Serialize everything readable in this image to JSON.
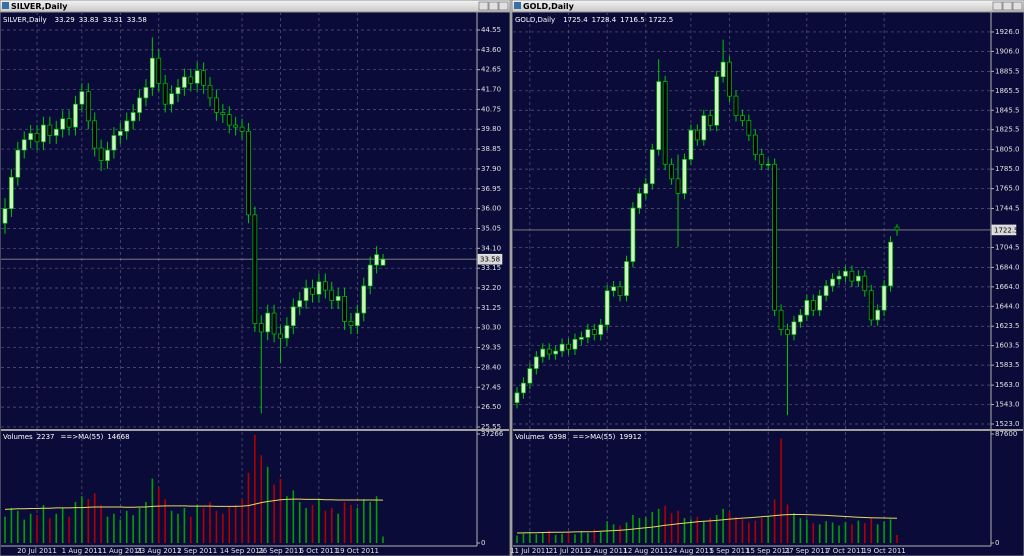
{
  "chart_data": [
    {
      "type": "candlestick",
      "title": "SILVER,Daily",
      "categories": [
        null,
        null,
        null,
        null,
        null,
        "20 Jul 2011",
        null,
        null,
        null,
        null,
        null,
        null,
        "1 Aug 2011",
        null,
        null,
        null,
        null,
        null,
        "11 Aug 2011",
        null,
        null,
        null,
        null,
        null,
        "23 Aug 2011",
        null,
        null,
        null,
        null,
        null,
        "2 Sep 2011",
        null,
        null,
        null,
        null,
        null,
        null,
        "14 Sep 2011",
        null,
        null,
        null,
        null,
        null,
        "26 Sep 2011",
        null,
        null,
        null,
        null,
        null,
        "6 Oct 2011",
        null,
        null,
        null,
        null,
        null,
        "19 Oct 2011",
        null,
        null,
        null,
        null
      ],
      "open": [
        35.3,
        36.0,
        37.5,
        38.8,
        39.3,
        39.6,
        39.2,
        40.0,
        39.5,
        39.8,
        40.3,
        39.9,
        41.0,
        41.6,
        40.2,
        38.9,
        38.3,
        38.8,
        39.5,
        39.7,
        40.2,
        40.6,
        41.3,
        41.8,
        43.2,
        42.0,
        41.0,
        41.5,
        41.8,
        42.3,
        42.0,
        42.6,
        41.9,
        41.3,
        40.6,
        40.5,
        40.0,
        39.9,
        39.7,
        35.7,
        30.5,
        30.1,
        31.0,
        30.0,
        29.8,
        30.4,
        31.3,
        31.6,
        32.2,
        31.9,
        32.5,
        32.1,
        31.6,
        31.8,
        30.6,
        30.4,
        31.0,
        32.3,
        33.3,
        33.29
      ],
      "high": [
        36.5,
        37.9,
        39.2,
        39.7,
        40.0,
        40.0,
        40.4,
        40.4,
        40.2,
        40.7,
        40.7,
        41.4,
        42.0,
        42.0,
        40.6,
        39.3,
        39.2,
        39.9,
        40.1,
        40.6,
        41.0,
        41.7,
        42.2,
        44.2,
        43.6,
        42.4,
        41.9,
        42.2,
        42.7,
        42.7,
        43.0,
        43.0,
        42.3,
        41.7,
        41.0,
        40.9,
        40.4,
        40.3,
        40.1,
        36.1,
        30.9,
        31.4,
        31.4,
        30.4,
        30.8,
        31.7,
        32.0,
        32.6,
        32.6,
        32.9,
        32.9,
        32.5,
        32.2,
        32.2,
        31.0,
        31.4,
        32.7,
        33.7,
        34.2,
        33.83
      ],
      "low": [
        34.8,
        35.6,
        37.1,
        38.4,
        38.9,
        38.8,
        38.8,
        39.1,
        39.1,
        39.4,
        39.5,
        39.5,
        40.6,
        39.8,
        38.5,
        37.8,
        37.9,
        38.4,
        39.1,
        39.3,
        39.8,
        40.2,
        40.9,
        41.4,
        41.6,
        40.6,
        40.6,
        41.1,
        41.4,
        41.6,
        41.6,
        41.5,
        40.9,
        40.2,
        40.1,
        39.6,
        39.5,
        39.3,
        35.3,
        30.1,
        26.2,
        29.7,
        29.6,
        28.6,
        29.4,
        30.0,
        30.9,
        31.2,
        31.5,
        31.5,
        31.7,
        31.2,
        31.2,
        30.2,
        30.0,
        30.0,
        30.6,
        31.9,
        32.9,
        33.31
      ],
      "close": [
        36.0,
        37.5,
        38.8,
        39.3,
        39.6,
        39.2,
        40.0,
        39.5,
        39.8,
        40.3,
        39.9,
        41.0,
        41.6,
        40.2,
        38.9,
        38.3,
        38.8,
        39.5,
        39.7,
        40.2,
        40.6,
        41.3,
        41.8,
        43.2,
        42.0,
        41.0,
        41.5,
        41.8,
        42.3,
        42.0,
        42.6,
        41.9,
        41.3,
        40.6,
        40.5,
        40.0,
        39.9,
        39.7,
        35.7,
        30.5,
        30.1,
        31.0,
        30.0,
        29.8,
        30.4,
        31.3,
        31.6,
        32.2,
        31.9,
        32.5,
        32.1,
        31.6,
        31.8,
        30.6,
        30.4,
        31.0,
        32.3,
        33.3,
        33.8,
        33.58
      ],
      "ylim": [
        25.5,
        45.22
      ],
      "yticks": [
        44.55,
        {
          "value": 43.6,
          "label": "43.60"
        },
        42.65,
        {
          "value": 41.7,
          "label": "41.70"
        },
        40.75,
        {
          "value": 39.8,
          "label": "39.80"
        },
        38.85,
        {
          "value": 37.9,
          "label": "37.90"
        },
        36.95,
        {
          "value": 36,
          "label": "36.00"
        },
        35.05,
        {
          "value": 34.1,
          "label": "34.10"
        },
        33.15,
        {
          "value": 32.2,
          "label": "32.20"
        },
        31.25,
        {
          "value": 30.3,
          "label": "30.30"
        },
        29.35,
        {
          "value": 28.4,
          "label": "28.40"
        },
        27.45,
        {
          "value": 26.5,
          "label": "26.50"
        },
        25.55
      ],
      "grid": true,
      "background": "#0b0b3a",
      "grid_color": "#5a5a7a",
      "up_color": "#d2f2c4",
      "down_color": "#000000",
      "wick_color": "#00c800",
      "price_line_color": "#8a8a8a",
      "volume": {
        "label": "Volumes",
        "ma_label": "==>MA(55)",
        "values": [
          9000,
          12000,
          11000,
          8000,
          10000,
          9500,
          13000,
          8500,
          10000,
          12000,
          9000,
          14000,
          16000,
          15000,
          17000,
          13000,
          9000,
          10000,
          8000,
          11000,
          9500,
          12000,
          14000,
          22000,
          19000,
          15000,
          11000,
          10000,
          12000,
          9000,
          13000,
          12000,
          14000,
          11000,
          10000,
          12500,
          13000,
          15000,
          24000,
          37000,
          30000,
          26000,
          20000,
          22000,
          16000,
          18000,
          14000,
          12000,
          13000,
          15000,
          11000,
          12000,
          10000,
          14000,
          13000,
          12000,
          15000,
          14000,
          16000,
          2237
        ],
        "ma_values": [
          11500,
          11600,
          11700,
          11700,
          11800,
          11800,
          11900,
          11900,
          12000,
          12000,
          12000,
          12100,
          12100,
          12200,
          12300,
          12300,
          12300,
          12300,
          12300,
          12200,
          12200,
          12300,
          12300,
          12500,
          12600,
          12700,
          12700,
          12700,
          12700,
          12600,
          12600,
          12600,
          12600,
          12500,
          12500,
          12500,
          12500,
          12600,
          12800,
          13300,
          13800,
          14200,
          14500,
          14800,
          14900,
          15000,
          15000,
          14900,
          14900,
          14900,
          14800,
          14800,
          14700,
          14700,
          14700,
          14700,
          14700,
          14700,
          14700,
          14668
        ],
        "ylim": [
          0,
          37266
        ],
        "yticks": [
          0,
          37266
        ],
        "up_color": "#00a000",
        "down_color": "#b00000",
        "ma_color": "#e8d860"
      }
    },
    {
      "type": "candlestick",
      "title": "GOLD,Daily",
      "categories": [
        null,
        null,
        "11 Jul 2011",
        null,
        null,
        null,
        null,
        null,
        "21 Jul 2011",
        null,
        null,
        null,
        null,
        null,
        "2 Aug 2011",
        null,
        null,
        null,
        null,
        null,
        "12 Aug 2011",
        null,
        null,
        null,
        null,
        null,
        null,
        "24 Aug 2011",
        null,
        null,
        null,
        null,
        null,
        "5 Sep 2011",
        null,
        null,
        null,
        null,
        null,
        "15 Sep 2011",
        null,
        null,
        null,
        null,
        null,
        "27 Sep 2011",
        null,
        null,
        null,
        null,
        null,
        "7 Oct 2011",
        null,
        null,
        null,
        null,
        null,
        "19 Oct 2011",
        null,
        null
      ],
      "open": [
        1545,
        1555,
        1565,
        1580,
        1592,
        1600,
        1595,
        1598,
        1605,
        1600,
        1610,
        1612,
        1620,
        1615,
        1625,
        1660,
        1664,
        1655,
        1690,
        1745,
        1760,
        1770,
        1805,
        1875,
        1790,
        1775,
        1760,
        1795,
        1825,
        1815,
        1840,
        1830,
        1880,
        1895,
        1860,
        1840,
        1835,
        1820,
        1800,
        1790,
        1790,
        1640,
        1620,
        1615,
        1628,
        1635,
        1650,
        1640,
        1655,
        1665,
        1672,
        1675,
        1680,
        1670,
        1675,
        1660,
        1630,
        1640,
        1665,
        1725.4
      ],
      "high": [
        1561,
        1571,
        1586,
        1598,
        1606,
        1606,
        1604,
        1611,
        1611,
        1616,
        1618,
        1626,
        1626,
        1631,
        1666,
        1670,
        1670,
        1696,
        1751,
        1766,
        1776,
        1811,
        1898,
        1881,
        1796,
        1800,
        1801,
        1831,
        1831,
        1846,
        1846,
        1886,
        1918,
        1901,
        1866,
        1846,
        1841,
        1826,
        1806,
        1796,
        1796,
        1646,
        1626,
        1634,
        1641,
        1656,
        1656,
        1661,
        1671,
        1678,
        1681,
        1686,
        1686,
        1681,
        1681,
        1666,
        1646,
        1671,
        1716,
        1728.4
      ],
      "low": [
        1539,
        1549,
        1559,
        1574,
        1586,
        1589,
        1589,
        1592,
        1594,
        1594,
        1604,
        1606,
        1609,
        1609,
        1619,
        1654,
        1649,
        1649,
        1684,
        1739,
        1754,
        1764,
        1799,
        1784,
        1769,
        1705,
        1754,
        1789,
        1809,
        1809,
        1824,
        1824,
        1874,
        1854,
        1834,
        1829,
        1814,
        1794,
        1784,
        1784,
        1634,
        1614,
        1532,
        1609,
        1622,
        1629,
        1634,
        1634,
        1649,
        1659,
        1666,
        1669,
        1664,
        1664,
        1654,
        1624,
        1624,
        1634,
        1659,
        1716.5
      ],
      "close": [
        1555,
        1565,
        1580,
        1592,
        1600,
        1595,
        1598,
        1605,
        1600,
        1610,
        1612,
        1620,
        1615,
        1625,
        1660,
        1664,
        1655,
        1690,
        1745,
        1760,
        1770,
        1805,
        1875,
        1790,
        1775,
        1760,
        1795,
        1825,
        1815,
        1840,
        1830,
        1880,
        1895,
        1860,
        1840,
        1835,
        1820,
        1800,
        1790,
        1790,
        1640,
        1620,
        1615,
        1628,
        1635,
        1650,
        1640,
        1655,
        1665,
        1672,
        1675,
        1680,
        1670,
        1675,
        1660,
        1630,
        1640,
        1665,
        1710,
        1722.5
      ],
      "ylim": [
        1518.9,
        1942.4
      ],
      "yticks": [
        {
          "value": 1926,
          "label": "1926.0"
        },
        {
          "value": 1906,
          "label": "1906.0"
        },
        1885.5,
        1865.5,
        1845.5,
        1825.5,
        {
          "value": 1805,
          "label": "1805.0"
        },
        {
          "value": 1785,
          "label": "1785.0"
        },
        {
          "value": 1765,
          "label": "1765.0"
        },
        1744.5,
        1704.5,
        {
          "value": 1684,
          "label": "1684.0"
        },
        {
          "value": 1664,
          "label": "1664.0"
        },
        {
          "value": 1644,
          "label": "1644.0"
        },
        1623.5,
        1603.5,
        1583.5,
        {
          "value": 1563,
          "label": "1563.0"
        },
        {
          "value": 1543,
          "label": "1543.0"
        },
        {
          "value": 1523,
          "label": "1523.0"
        }
      ],
      "grid": true,
      "background": "#0b0b3a",
      "grid_color": "#5a5a7a",
      "up_color": "#d2f2c4",
      "down_color": "#000000",
      "wick_color": "#00c800",
      "price_line_color": "#8a8a8a",
      "volume": {
        "label": "Volumes",
        "ma_label": "==>MA(55)",
        "values": [
          6000,
          7500,
          9000,
          7000,
          8000,
          10000,
          6500,
          7500,
          8500,
          7000,
          9500,
          8000,
          11000,
          9000,
          17500,
          15000,
          14000,
          16500,
          22500,
          20000,
          21000,
          25000,
          27500,
          30000,
          24000,
          26000,
          20000,
          19000,
          21000,
          17500,
          20000,
          22500,
          27500,
          25000,
          21000,
          19000,
          16500,
          18000,
          20000,
          22000,
          35000,
          84000,
          31000,
          24000,
          20000,
          19000,
          16000,
          15000,
          17500,
          16500,
          14000,
          17000,
          15000,
          18000,
          16000,
          20000,
          15000,
          17500,
          19000,
          6398
        ],
        "ma_values": [
          8000,
          8100,
          8200,
          8300,
          8400,
          8500,
          8600,
          8700,
          8800,
          8900,
          9000,
          9100,
          9200,
          9400,
          9700,
          10000,
          10300,
          10700,
          11200,
          11700,
          12200,
          12800,
          13500,
          14200,
          14800,
          15400,
          16000,
          16500,
          17000,
          17400,
          17800,
          18200,
          18700,
          19200,
          19600,
          20000,
          20300,
          20700,
          21100,
          21500,
          22000,
          22500,
          22800,
          22900,
          22900,
          22800,
          22600,
          22400,
          22200,
          21900,
          21600,
          21300,
          21000,
          20700,
          20500,
          20300,
          20200,
          20100,
          20000,
          19912
        ],
        "ylim": [
          0,
          87600
        ],
        "yticks": [
          0,
          87600
        ],
        "up_color": "#00a000",
        "down_color": "#b00000",
        "ma_color": "#e8d860"
      }
    }
  ]
}
